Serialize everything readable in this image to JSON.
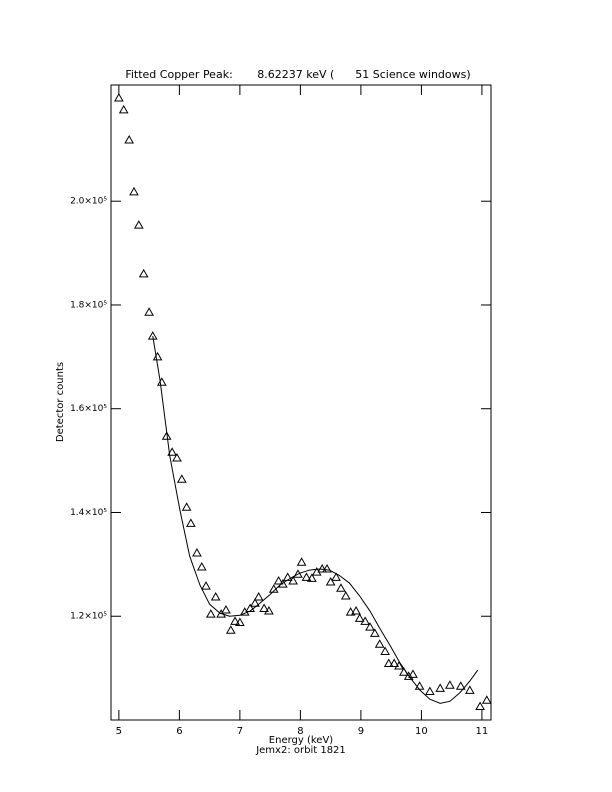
{
  "chart_data": {
    "type": "scatter",
    "title": "Fitted Copper Peak:       8.62237 keV (      51 Science windows)",
    "x_label": "Energy (keV)",
    "subtitle": "Jemx2: orbit 1821",
    "y_label": "Detector counts",
    "xlim": [
      4.87,
      11.15
    ],
    "ylim": [
      100000,
      222400
    ],
    "xticks": [
      5,
      6,
      7,
      8,
      9,
      10,
      11
    ],
    "yticks": [
      {
        "value": 120000,
        "label": "1.2×10⁵"
      },
      {
        "value": 140000,
        "label": "1.4×10⁵"
      },
      {
        "value": 160000,
        "label": "1.6×10⁵"
      },
      {
        "value": 180000,
        "label": "1.8×10⁵"
      },
      {
        "value": 200000,
        "label": "2.0×10⁵"
      }
    ],
    "color": "#000000",
    "x": [
      5.0,
      5.08,
      5.17,
      5.25,
      5.33,
      5.41,
      5.5,
      5.56,
      5.64,
      5.71,
      5.79,
      5.88,
      5.96,
      6.04,
      6.12,
      6.19,
      6.29,
      6.37,
      6.44,
      6.52,
      6.6,
      6.69,
      6.77,
      6.85,
      6.92,
      7.0,
      7.08,
      7.17,
      7.25,
      7.31,
      7.4,
      7.48,
      7.56,
      7.64,
      7.71,
      7.79,
      7.88,
      7.96,
      8.02,
      8.1,
      8.19,
      8.27,
      8.36,
      8.44,
      8.5,
      8.59,
      8.67,
      8.75,
      8.83,
      8.92,
      8.98,
      9.07,
      9.15,
      9.23,
      9.31,
      9.4,
      9.46,
      9.55,
      9.63,
      9.71,
      9.79,
      9.86,
      9.97,
      10.14,
      10.31,
      10.47,
      10.65,
      10.8,
      10.97,
      11.08
    ],
    "values": [
      219900,
      217600,
      211800,
      201800,
      195400,
      186000,
      178600,
      174000,
      170000,
      165100,
      154700,
      151600,
      150500,
      146400,
      141000,
      137900,
      132200,
      129500,
      125800,
      120400,
      123700,
      120400,
      121200,
      117300,
      119000,
      118800,
      120800,
      121500,
      122500,
      123700,
      121500,
      121000,
      125200,
      126800,
      126200,
      127500,
      126800,
      128100,
      130400,
      127500,
      127300,
      128500,
      129100,
      129100,
      126600,
      127500,
      125400,
      123900,
      120800,
      121000,
      119600,
      119000,
      117900,
      116700,
      114600,
      113200,
      110900,
      110900,
      110400,
      109200,
      108400,
      108800,
      106500,
      105500,
      106100,
      106700,
      106500,
      105700,
      102600,
      103800
    ],
    "fit": {
      "x": [
        5.56,
        5.68,
        5.84,
        6.01,
        6.17,
        6.34,
        6.5,
        6.67,
        6.83,
        7.0,
        7.17,
        7.33,
        7.5,
        7.66,
        7.83,
        7.99,
        8.15,
        8.32,
        8.48,
        8.64,
        8.81,
        8.98,
        9.15,
        9.31,
        9.48,
        9.64,
        9.81,
        9.98,
        10.14,
        10.31,
        10.47,
        10.64,
        10.8,
        10.93
      ],
      "values": [
        174000,
        165500,
        151000,
        140400,
        131600,
        126000,
        122300,
        120600,
        120000,
        120200,
        121000,
        122500,
        124200,
        126000,
        127300,
        128300,
        128900,
        129100,
        128900,
        127900,
        126400,
        123900,
        121000,
        117700,
        114400,
        111100,
        108200,
        105700,
        104000,
        103200,
        103600,
        105300,
        107500,
        109600
      ]
    }
  }
}
